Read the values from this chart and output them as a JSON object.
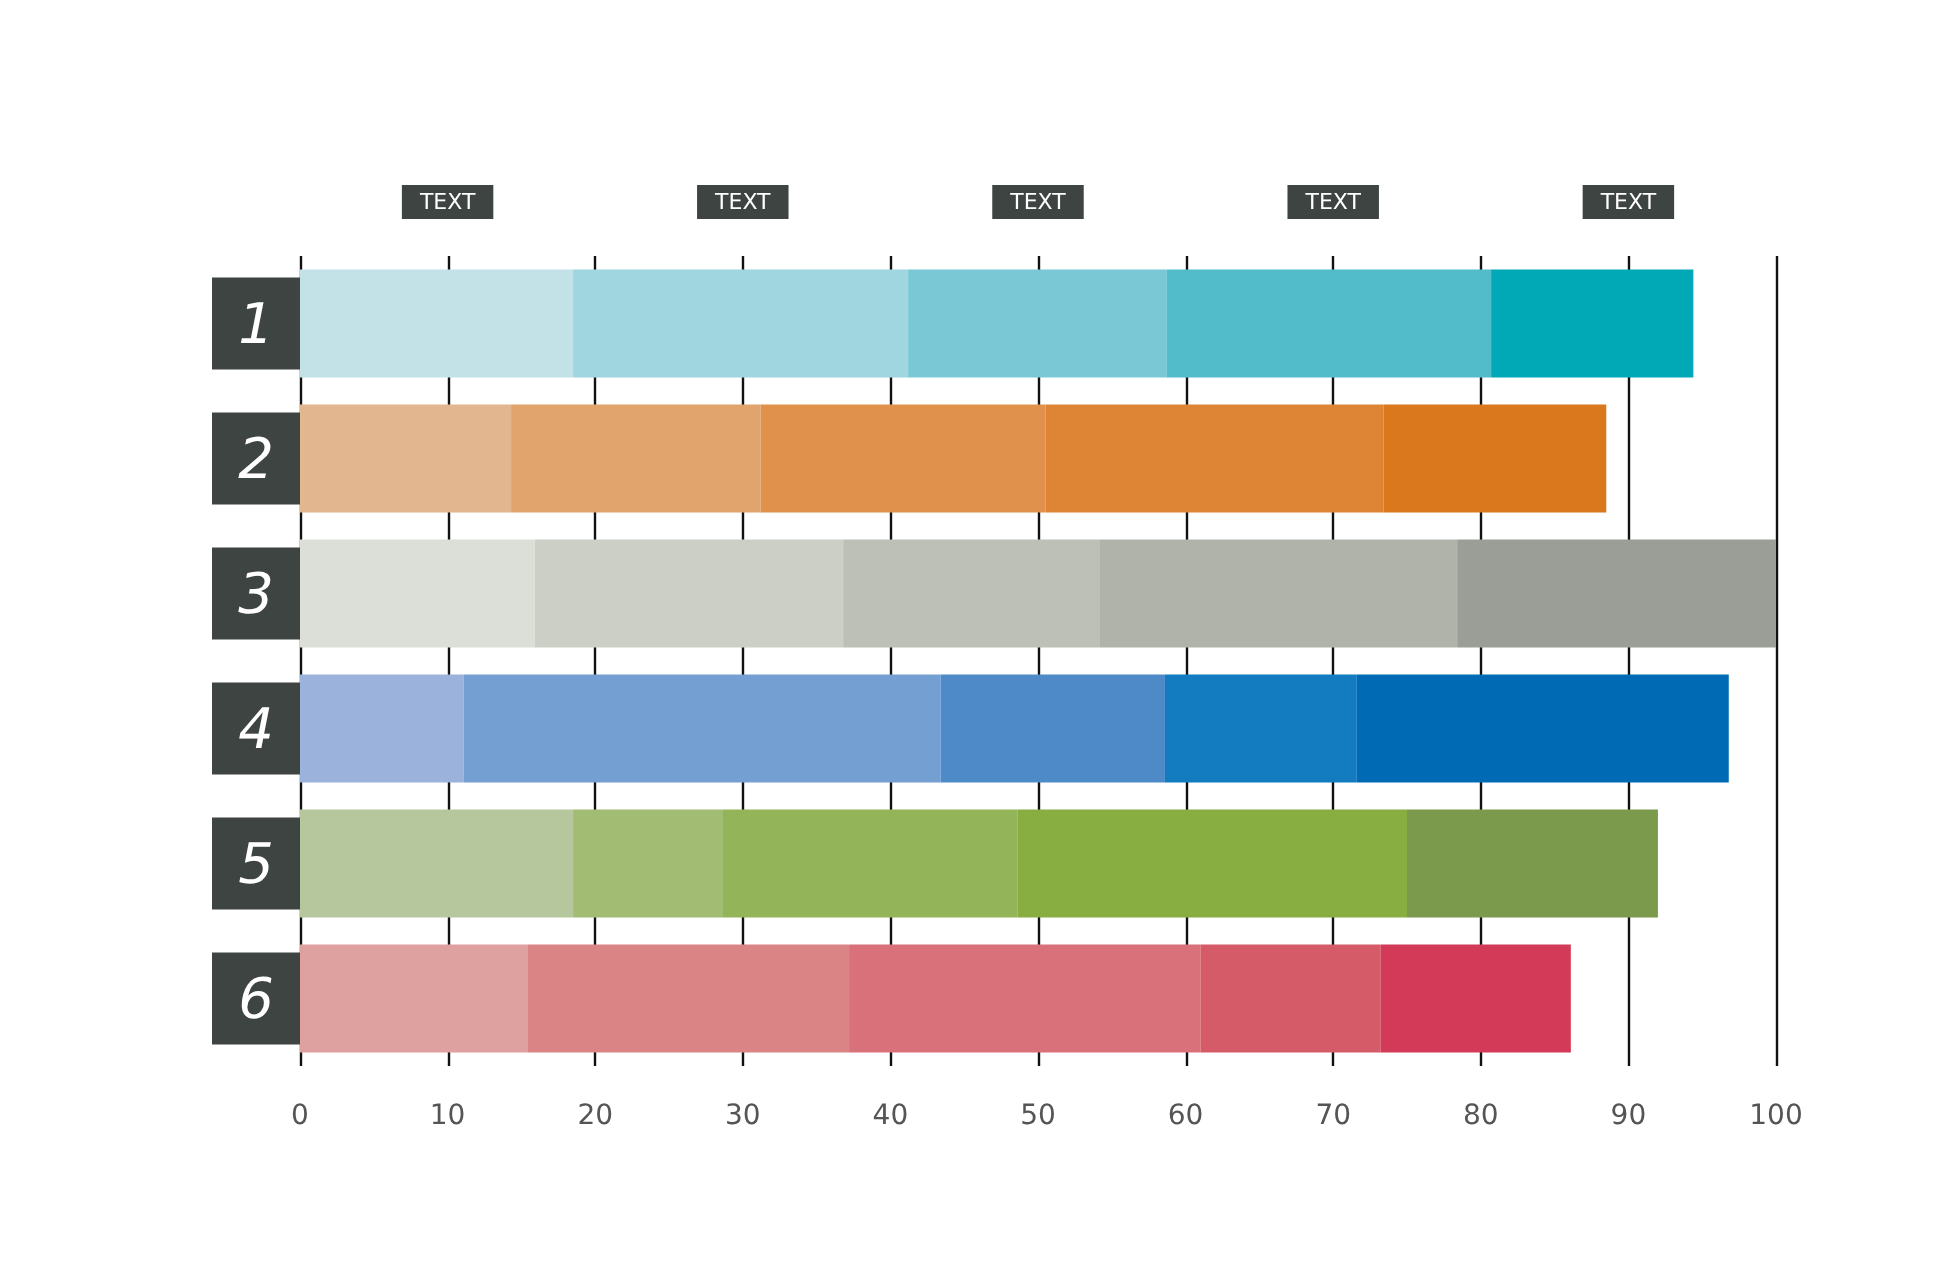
{
  "chart_data": {
    "type": "bar",
    "orientation": "horizontal",
    "stacked": true,
    "categories": [
      "1",
      "2",
      "3",
      "4",
      "5",
      "6"
    ],
    "series": [
      {
        "colors": [
          "#c3e2e8",
          "#e2b68e",
          "#dcdfd8",
          "#9ab2dc",
          "#b7c79d",
          "#dfa0a0"
        ],
        "values": [
          18.5,
          14.3,
          15.9,
          11.1,
          18.5,
          15.4
        ]
      },
      {
        "colors": [
          "#9fd6e0",
          "#e0a46c",
          "#cbcfc6",
          "#739fd3",
          "#a2bc73",
          "#db8486"
        ],
        "values": [
          22.7,
          16.9,
          20.9,
          32.3,
          10.1,
          21.8
        ]
      },
      {
        "colors": [
          "#7ac8d5",
          "#e0924c",
          "#bcc0b7",
          "#4e89c8",
          "#94b45a",
          "#d8717a"
        ],
        "values": [
          17.5,
          19.3,
          17.4,
          15.2,
          20.0,
          23.8
        ]
      },
      {
        "colors": [
          "#52bccb",
          "#de8535",
          "#afb3aa",
          "#137bc0",
          "#88ad40",
          "#d65b68"
        ],
        "values": [
          22.0,
          22.9,
          24.2,
          13.0,
          26.4,
          12.2
        ]
      },
      {
        "colors": [
          "#00a9b5",
          "#d9781c",
          "#9a9e97",
          "#006ab4",
          "#7c9a4c",
          "#d23a57"
        ],
        "values": [
          13.7,
          15.1,
          21.6,
          25.2,
          17.0,
          12.9
        ]
      }
    ],
    "xlim": [
      0,
      100
    ],
    "xticks": [
      0,
      10,
      20,
      30,
      40,
      50,
      60,
      70,
      80,
      90,
      100
    ],
    "annotations": [
      "TEXT",
      "TEXT",
      "TEXT",
      "TEXT",
      "TEXT"
    ],
    "grid": "x"
  }
}
